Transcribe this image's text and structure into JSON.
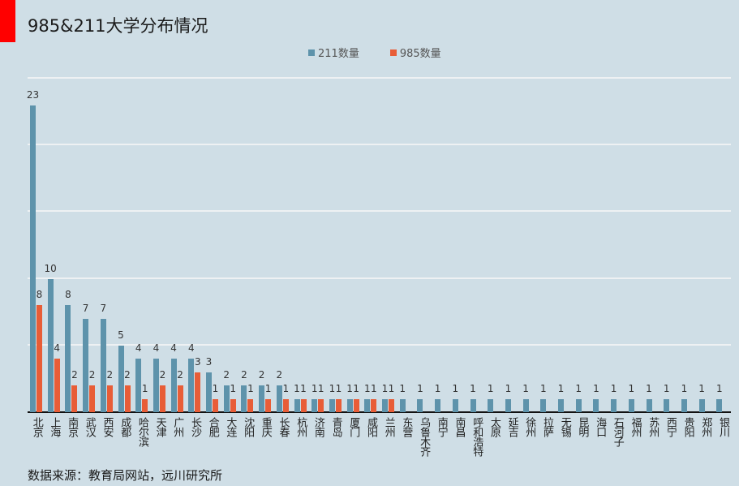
{
  "title": "985&211大学分布情况",
  "source": "数据来源：教育局网站，远川研究所",
  "legend": [
    {
      "label": "211数量",
      "color": "#5e93ab"
    },
    {
      "label": "985数量",
      "color": "#e85d37"
    }
  ],
  "chart_data": {
    "type": "bar",
    "title": "985&211大学分布情况",
    "xlabel": "",
    "ylabel": "",
    "ylim": [
      0,
      25
    ],
    "grid": true,
    "gridlines": [
      5,
      10,
      15,
      20,
      25
    ],
    "legend_position": "top",
    "categories": [
      "北京",
      "上海",
      "南京",
      "武汉",
      "西安",
      "成都",
      "哈尔滨",
      "天津",
      "广州",
      "长沙",
      "合肥",
      "大连",
      "沈阳",
      "重庆",
      "长春",
      "杭州",
      "济南",
      "青岛",
      "厦门",
      "咸阳",
      "兰州",
      "东营",
      "乌鲁木齐",
      "南宁",
      "南昌",
      "呼和浩特",
      "太原",
      "延吉",
      "徐州",
      "拉萨",
      "无锡",
      "昆明",
      "海口",
      "石河子",
      "福州",
      "苏州",
      "西宁",
      "贵阳",
      "郑州",
      "银川"
    ],
    "series": [
      {
        "name": "211数量",
        "color": "#5e93ab",
        "values": [
          23,
          10,
          8,
          7,
          7,
          5,
          4,
          4,
          4,
          4,
          3,
          2,
          2,
          2,
          2,
          1,
          1,
          1,
          1,
          1,
          1,
          1,
          1,
          1,
          1,
          1,
          1,
          1,
          1,
          1,
          1,
          1,
          1,
          1,
          1,
          1,
          1,
          1,
          1,
          1
        ]
      },
      {
        "name": "985数量",
        "color": "#e85d37",
        "values": [
          8,
          4,
          2,
          2,
          2,
          2,
          1,
          2,
          2,
          3,
          1,
          1,
          1,
          1,
          1,
          1,
          1,
          1,
          1,
          1,
          1,
          null,
          null,
          null,
          null,
          null,
          null,
          null,
          null,
          null,
          null,
          null,
          null,
          null,
          null,
          null,
          null,
          null,
          null,
          null
        ]
      }
    ],
    "annotation": "数据来源：教育局网站，远川研究所"
  }
}
